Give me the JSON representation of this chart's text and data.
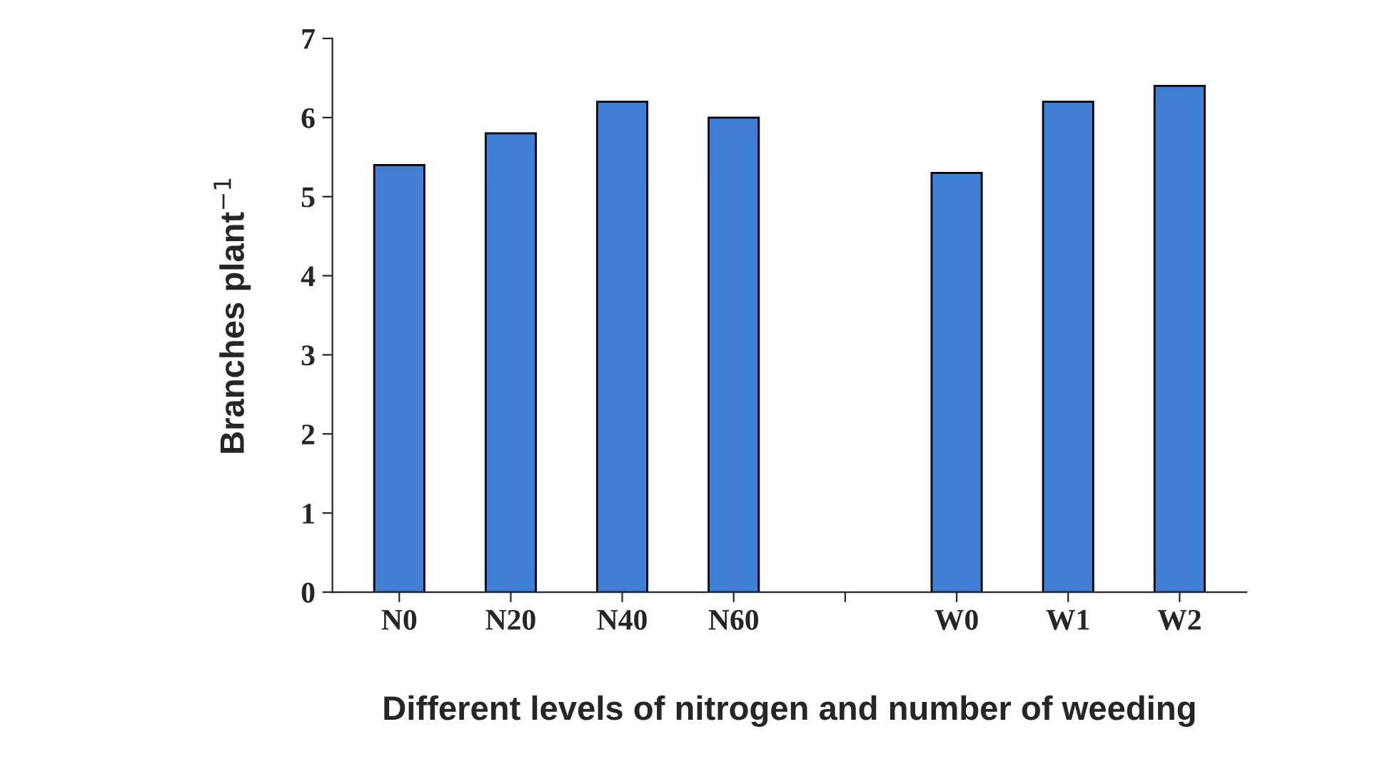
{
  "chart_data": {
    "type": "bar",
    "xlabel": "Different levels of nitrogen and number of weeding",
    "ylabel": "Branches plant$^{−1}$",
    "categories": [
      "N0",
      "N20",
      "N40",
      "N60",
      null,
      "W0",
      "W1",
      "W2"
    ],
    "values": [
      5.4,
      5.8,
      6.2,
      6.0,
      null,
      5.3,
      6.2,
      6.4
    ],
    "color": "#3f7fd6",
    "ylim": [
      0,
      7
    ],
    "yticks": [
      0,
      1,
      2,
      3,
      4,
      5,
      6,
      7
    ],
    "grid": false
  }
}
